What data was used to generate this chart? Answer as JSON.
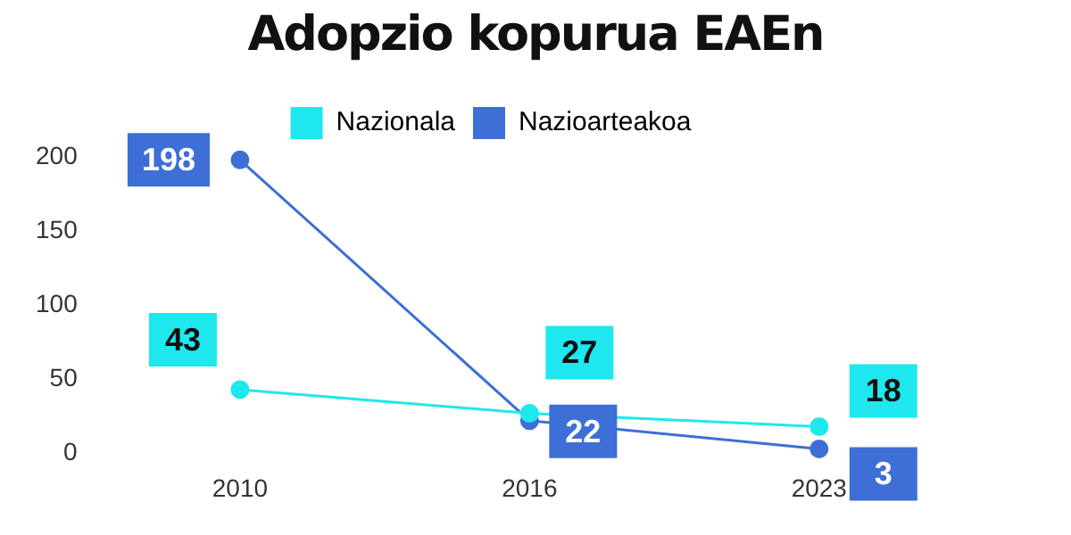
{
  "chart_data": {
    "type": "line",
    "title": "Adopzio kopurua EAEn",
    "categories": [
      "2010",
      "2016",
      "2023"
    ],
    "series": [
      {
        "name": "Nazionala",
        "color": "#1ee8ee",
        "values": [
          43,
          27,
          18
        ]
      },
      {
        "name": "Nazioarteakoa",
        "color": "#3d6fd6",
        "values": [
          198,
          22,
          3
        ]
      }
    ],
    "ylim": [
      0,
      200
    ],
    "yticks": [
      0,
      50,
      100,
      150,
      200
    ],
    "grid": false,
    "legend": "top",
    "marker": "circle",
    "line_style": "solid",
    "data_labels": true
  }
}
